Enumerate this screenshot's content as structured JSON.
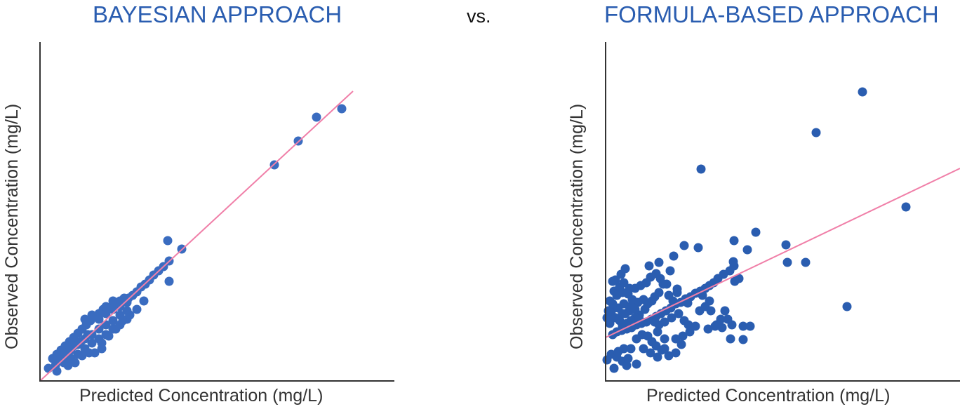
{
  "header": {
    "comparison_label": "vs."
  },
  "colors": {
    "point": "#2a5db0",
    "point_left": "#3a6cc0",
    "fit_line": "#f07fa8",
    "axis": "#333333",
    "title": "#2a5db0"
  },
  "chart_data": [
    {
      "type": "scatter",
      "title": "BAYESIAN APPROACH",
      "xlabel": "Predicted Concentration (mg/L)",
      "ylabel": "Observed Concentration (mg/L)",
      "grid": false,
      "ticks": false,
      "units_note": "no tick labels shown; values in relative units (0-505 x, 0-483 y)",
      "xlim": [
        0,
        505
      ],
      "ylim": [
        0,
        483
      ],
      "fit_line": {
        "x": [
          0,
          446
        ],
        "y": [
          0,
          413
        ]
      },
      "points": [
        [
          430,
          388
        ],
        [
          394,
          376
        ],
        [
          368,
          342
        ],
        [
          334,
          308
        ],
        [
          182,
          200
        ],
        [
          202,
          188
        ],
        [
          184,
          171
        ],
        [
          184,
          142
        ],
        [
          176,
          163
        ],
        [
          169,
          157
        ],
        [
          162,
          151
        ],
        [
          156,
          144
        ],
        [
          150,
          138
        ],
        [
          144,
          134
        ],
        [
          138,
          127
        ],
        [
          132,
          122
        ],
        [
          126,
          118
        ],
        [
          120,
          118
        ],
        [
          114,
          114
        ],
        [
          108,
          110
        ],
        [
          102,
          106
        ],
        [
          96,
          102
        ],
        [
          90,
          102
        ],
        [
          84,
          96
        ],
        [
          78,
          92
        ],
        [
          72,
          86
        ],
        [
          66,
          80
        ],
        [
          60,
          74
        ],
        [
          54,
          68
        ],
        [
          48,
          62
        ],
        [
          42,
          56
        ],
        [
          36,
          50
        ],
        [
          30,
          44
        ],
        [
          24,
          38
        ],
        [
          18,
          32
        ],
        [
          12,
          18
        ],
        [
          24,
          14
        ],
        [
          34,
          26
        ],
        [
          44,
          32
        ],
        [
          54,
          38
        ],
        [
          64,
          46
        ],
        [
          74,
          54
        ],
        [
          84,
          60
        ],
        [
          94,
          66
        ],
        [
          104,
          74
        ],
        [
          114,
          80
        ],
        [
          124,
          88
        ],
        [
          124,
          100
        ],
        [
          114,
          94
        ],
        [
          104,
          86
        ],
        [
          94,
          80
        ],
        [
          84,
          74
        ],
        [
          74,
          66
        ],
        [
          64,
          60
        ],
        [
          54,
          52
        ],
        [
          44,
          44
        ],
        [
          34,
          36
        ],
        [
          64,
          88
        ],
        [
          74,
          94
        ],
        [
          84,
          88
        ],
        [
          94,
          96
        ],
        [
          104,
          102
        ],
        [
          114,
          106
        ],
        [
          124,
          112
        ],
        [
          68,
          66
        ],
        [
          58,
          56
        ],
        [
          48,
          50
        ],
        [
          38,
          40
        ],
        [
          28,
          30
        ],
        [
          22,
          22
        ],
        [
          88,
          54
        ],
        [
          98,
          64
        ],
        [
          108,
          74
        ],
        [
          118,
          86
        ],
        [
          128,
          94
        ],
        [
          138,
          102
        ],
        [
          148,
          114
        ],
        [
          78,
          40
        ],
        [
          88,
          46
        ],
        [
          70,
          40
        ],
        [
          60,
          36
        ],
        [
          50,
          26
        ],
        [
          40,
          22
        ],
        [
          104,
          114
        ],
        [
          94,
          106
        ]
      ]
    },
    {
      "type": "scatter",
      "title": "FORMULA-BASED APPROACH",
      "xlabel": "Predicted Concentration (mg/L)",
      "ylabel": "Observed Concentration (mg/L)",
      "grid": false,
      "ticks": false,
      "units_note": "no tick labels shown; values in relative units (0-505 x, 0-483 y)",
      "xlim": [
        0,
        505
      ],
      "ylim": [
        0,
        483
      ],
      "fit_line": {
        "x": [
          0,
          505
        ],
        "y": [
          62,
          303
        ]
      },
      "points": [
        [
          366,
          412
        ],
        [
          300,
          354
        ],
        [
          136,
          302
        ],
        [
          428,
          248
        ],
        [
          344,
          106
        ],
        [
          257,
          194
        ],
        [
          259,
          169
        ],
        [
          285,
          169
        ],
        [
          214,
          212
        ],
        [
          183,
          200
        ],
        [
          202,
          187
        ],
        [
          182,
          170
        ],
        [
          132,
          190
        ],
        [
          112,
          193
        ],
        [
          97,
          178
        ],
        [
          92,
          157
        ],
        [
          76,
          169
        ],
        [
          62,
          164
        ],
        [
          72,
          153
        ],
        [
          78,
          146
        ],
        [
          102,
          131
        ],
        [
          87,
          138
        ],
        [
          117,
          111
        ],
        [
          138,
          122
        ],
        [
          148,
          114
        ],
        [
          183,
          164
        ],
        [
          177,
          157
        ],
        [
          168,
          152
        ],
        [
          160,
          146
        ],
        [
          154,
          140
        ],
        [
          148,
          136
        ],
        [
          142,
          132
        ],
        [
          135,
          128
        ],
        [
          128,
          125
        ],
        [
          121,
          120
        ],
        [
          114,
          117
        ],
        [
          107,
          112
        ],
        [
          100,
          110
        ],
        [
          93,
          104
        ],
        [
          86,
          100
        ],
        [
          79,
          96
        ],
        [
          72,
          92
        ],
        [
          65,
          88
        ],
        [
          58,
          84
        ],
        [
          51,
          82
        ],
        [
          44,
          80
        ],
        [
          37,
          76
        ],
        [
          30,
          74
        ],
        [
          23,
          72
        ],
        [
          16,
          70
        ],
        [
          10,
          66
        ],
        [
          48,
          94
        ],
        [
          42,
          90
        ],
        [
          36,
          86
        ],
        [
          30,
          82
        ],
        [
          24,
          78
        ],
        [
          56,
          102
        ],
        [
          60,
          110
        ],
        [
          66,
          114
        ],
        [
          54,
          116
        ],
        [
          46,
          112
        ],
        [
          40,
          106
        ],
        [
          34,
          100
        ],
        [
          28,
          96
        ],
        [
          20,
          86
        ],
        [
          12,
          104
        ],
        [
          8,
          96
        ],
        [
          18,
          104
        ],
        [
          26,
          110
        ],
        [
          12,
          128
        ],
        [
          20,
          134
        ],
        [
          26,
          140
        ],
        [
          32,
          124
        ],
        [
          38,
          116
        ],
        [
          14,
          144
        ],
        [
          22,
          152
        ],
        [
          28,
          160
        ],
        [
          34,
          132
        ],
        [
          42,
          102
        ],
        [
          48,
          88
        ],
        [
          70,
          84
        ],
        [
          76,
          80
        ],
        [
          84,
          84
        ],
        [
          94,
          90
        ],
        [
          104,
          96
        ],
        [
          112,
          86
        ],
        [
          118,
          80
        ],
        [
          128,
          78
        ],
        [
          134,
          100
        ],
        [
          142,
          106
        ],
        [
          150,
          100
        ],
        [
          156,
          78
        ],
        [
          166,
          76
        ],
        [
          174,
          88
        ],
        [
          180,
          80
        ],
        [
          196,
          78
        ],
        [
          206,
          78
        ],
        [
          178,
          60
        ],
        [
          196,
          59
        ],
        [
          158,
          80
        ],
        [
          146,
          74
        ],
        [
          66,
          56
        ],
        [
          72,
          50
        ],
        [
          80,
          44
        ],
        [
          90,
          36
        ],
        [
          100,
          40
        ],
        [
          74,
          34
        ],
        [
          64,
          40
        ],
        [
          54,
          46
        ],
        [
          44,
          60
        ],
        [
          52,
          66
        ],
        [
          60,
          64
        ],
        [
          74,
          70
        ],
        [
          84,
          60
        ],
        [
          108,
          52
        ],
        [
          84,
          46
        ],
        [
          42,
          132
        ],
        [
          50,
          136
        ],
        [
          58,
          140
        ],
        [
          64,
          148
        ],
        [
          70,
          120
        ],
        [
          76,
          126
        ],
        [
          82,
          138
        ],
        [
          90,
          122
        ],
        [
          96,
          114
        ],
        [
          102,
          126
        ],
        [
          2,
          30
        ],
        [
          8,
          38
        ],
        [
          16,
          34
        ],
        [
          24,
          28
        ],
        [
          30,
          22
        ],
        [
          12,
          18
        ],
        [
          32,
          32
        ],
        [
          44,
          24
        ],
        [
          36,
          46
        ],
        [
          26,
          46
        ],
        [
          18,
          42
        ],
        [
          2,
          90
        ],
        [
          4,
          100
        ],
        [
          10,
          110
        ],
        [
          6,
          82
        ],
        [
          14,
          90
        ],
        [
          24,
          96
        ],
        [
          34,
          106
        ],
        [
          6,
          114
        ],
        [
          16,
          122
        ],
        [
          24,
          126
        ],
        [
          10,
          142
        ],
        [
          100,
          60
        ],
        [
          110,
          64
        ],
        [
          120,
          70
        ],
        [
          164,
          88
        ],
        [
          170,
          100
        ],
        [
          184,
          142
        ],
        [
          190,
          146
        ]
      ]
    }
  ]
}
